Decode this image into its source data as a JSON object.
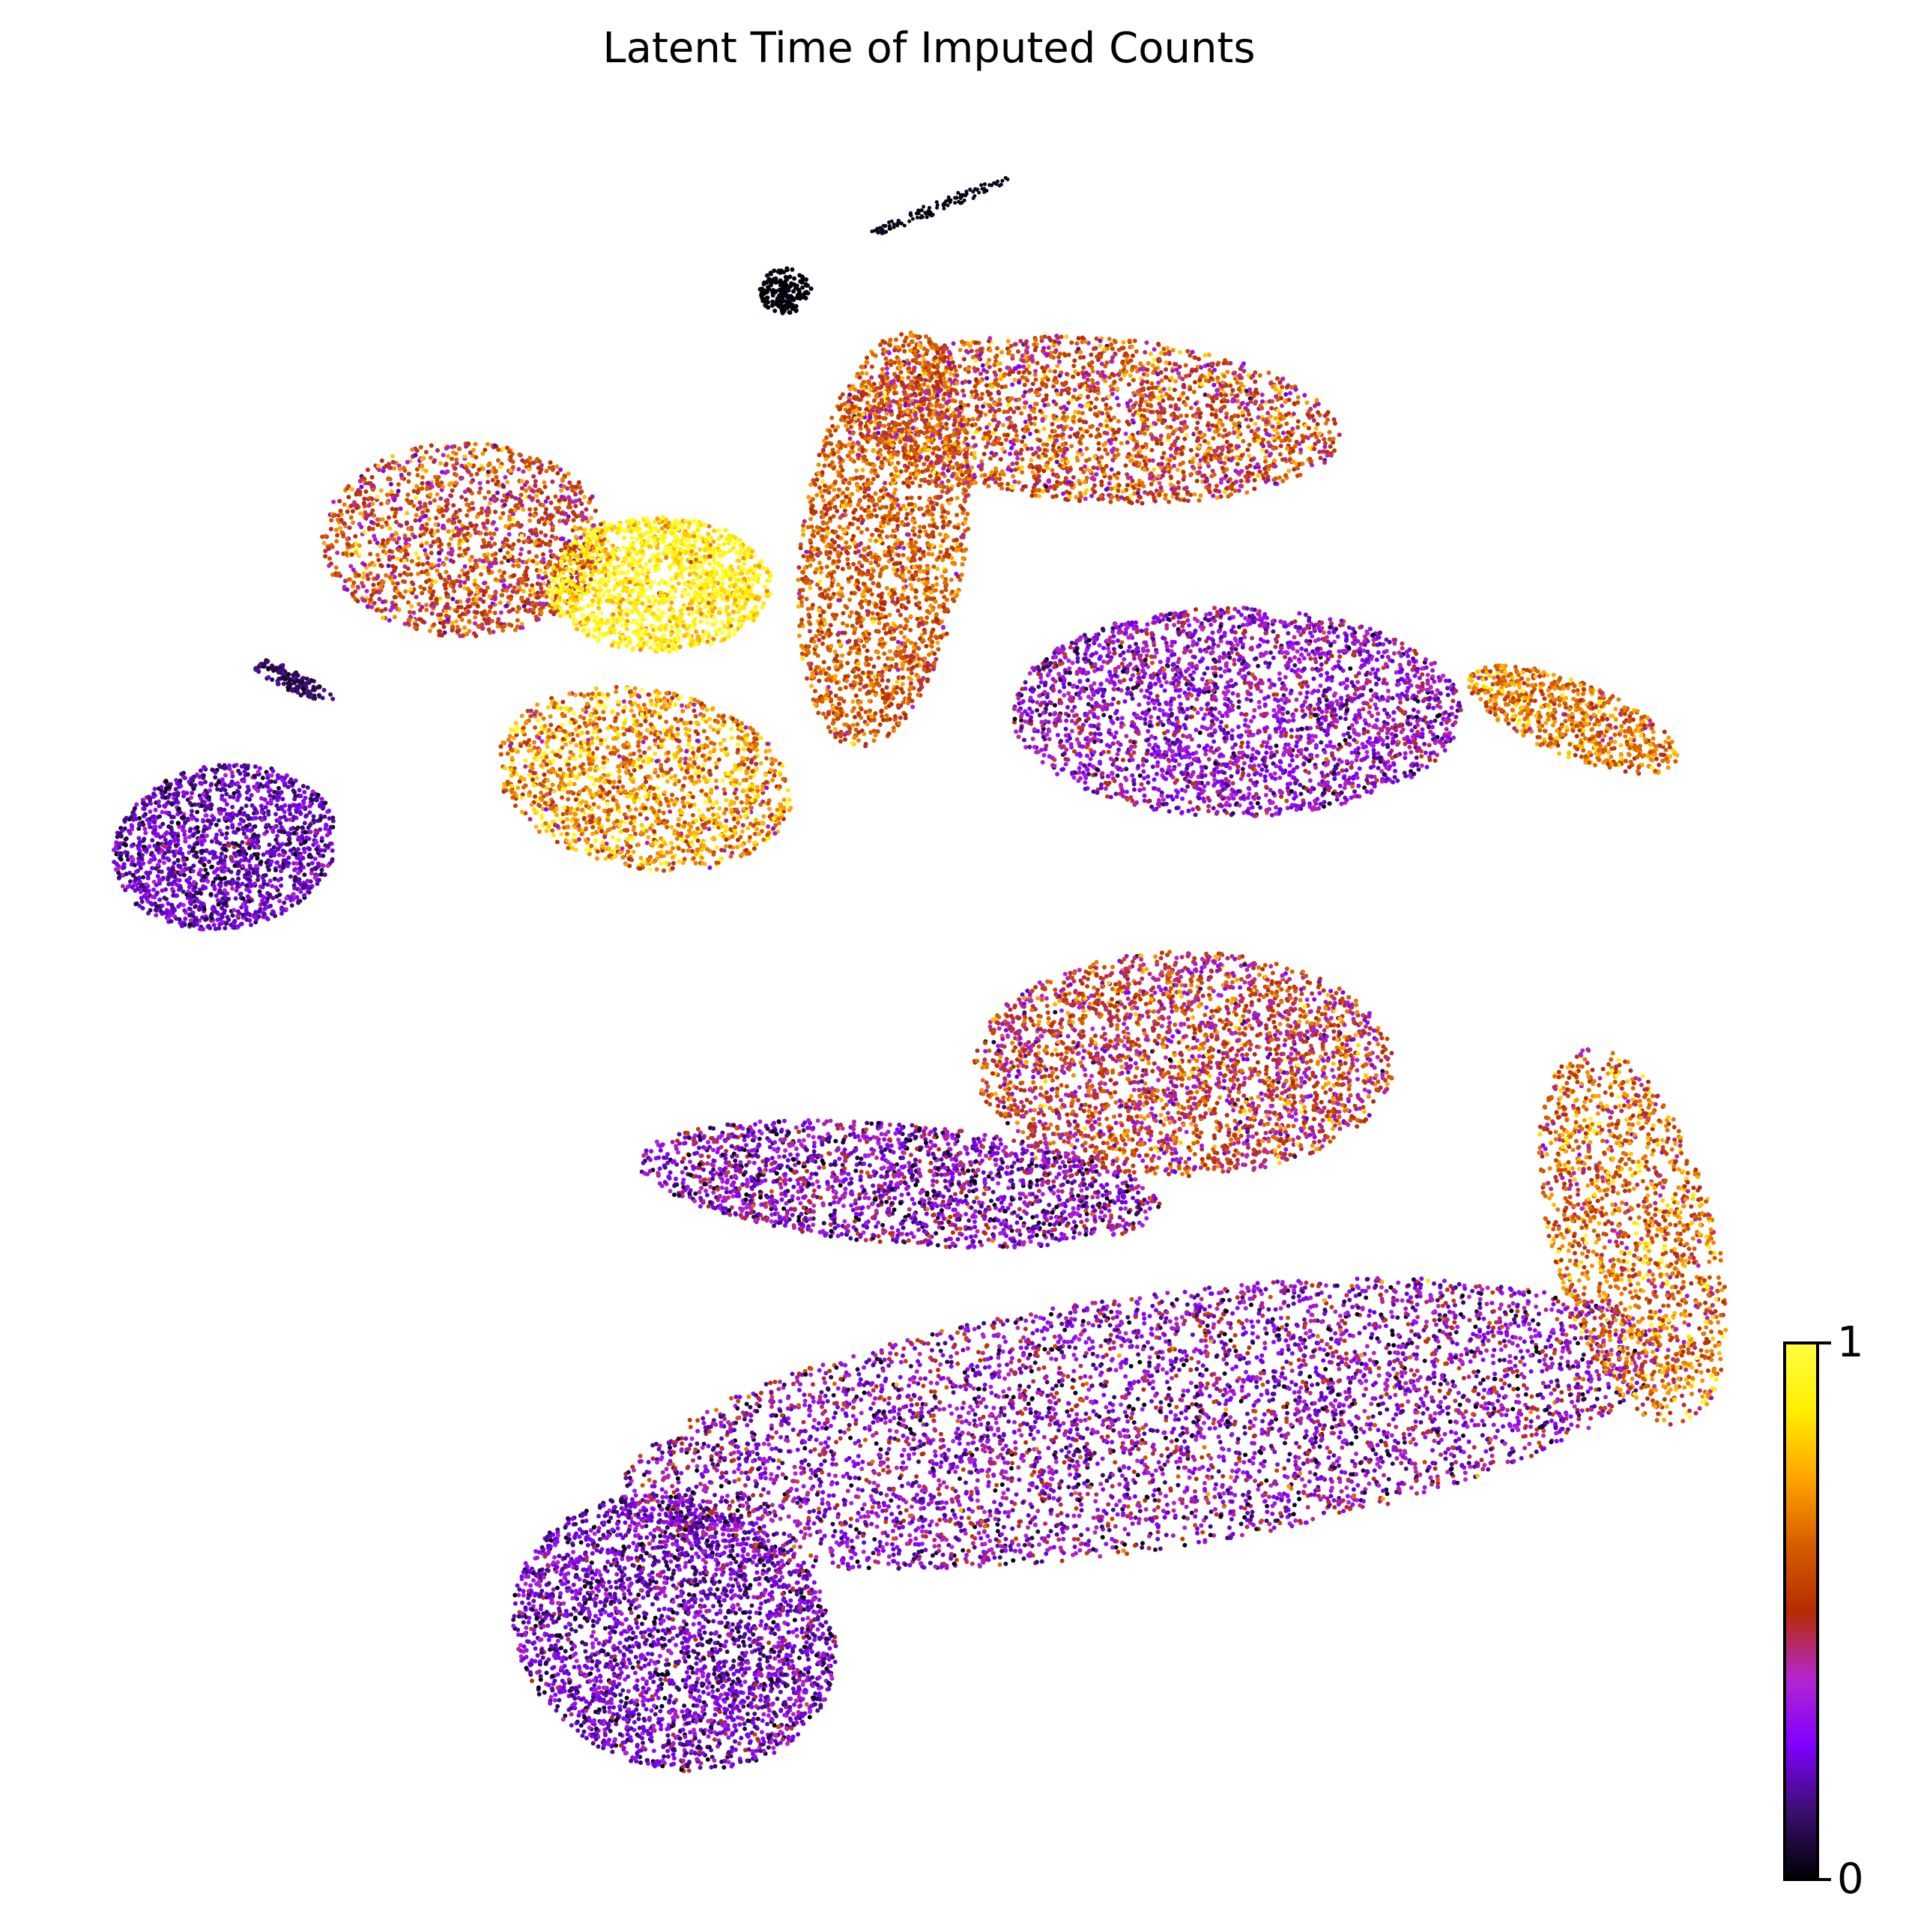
{
  "chart_data": {
    "type": "scatter",
    "title": "Latent Time of Imputed Counts",
    "xlabel": "",
    "ylabel": "",
    "axes_visible": false,
    "colormap": "gnuplot",
    "colorbar": {
      "min": 0,
      "max": 1,
      "tick_labels": [
        "0",
        "1"
      ],
      "placement": "bottom-right",
      "stops": [
        "#000004",
        "#3b0f70",
        "#7f00ff",
        "#b526cf",
        "#b52c00",
        "#d65e00",
        "#ffa500",
        "#ffee00",
        "#ffff40"
      ]
    },
    "clusters": [
      {
        "id": "top-line",
        "latent_time": 0.02
      },
      {
        "id": "top-ring",
        "latent_time": 0.0
      },
      {
        "id": "left-small-dark",
        "latent_time": 0.1
      },
      {
        "id": "top-left-dual",
        "latent_time": 0.55
      },
      {
        "id": "yellow-core",
        "latent_time": 0.9
      },
      {
        "id": "central-orange",
        "latent_time": 0.7
      },
      {
        "id": "tall-column",
        "latent_time": 0.6
      },
      {
        "id": "top-right-arc",
        "latent_time": 0.55
      },
      {
        "id": "right-upper-purple",
        "latent_time": 0.3
      },
      {
        "id": "far-right-tail",
        "latent_time": 0.65
      },
      {
        "id": "mid-right-blob",
        "latent_time": 0.5
      },
      {
        "id": "left-purple-blob",
        "latent_time": 0.2
      },
      {
        "id": "bottom-long-arc",
        "latent_time": 0.3
      },
      {
        "id": "bottom-left-blob",
        "latent_time": 0.22
      },
      {
        "id": "lower-middle-band",
        "latent_time": 0.28
      },
      {
        "id": "right-rim-orange",
        "latent_time": 0.62
      }
    ]
  }
}
